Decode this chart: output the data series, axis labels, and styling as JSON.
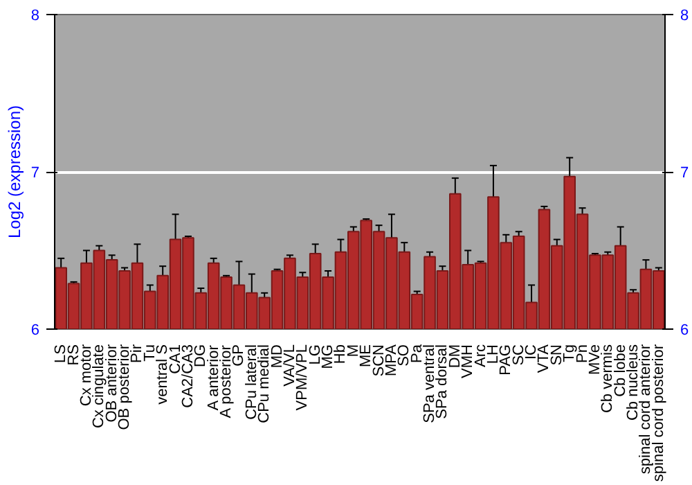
{
  "chart_data": {
    "type": "bar",
    "ylabel": "Log2 (expression)",
    "categories": [
      "LS",
      "RS",
      "Cx motor",
      "Cx cingulate",
      "OB anterior",
      "OB posterior",
      "Pir",
      "Tu",
      "ventral S",
      "CA1",
      "CA2/CA3",
      "DG",
      "A anterior",
      "A posterior",
      "GP",
      "CPu lateral",
      "CPu medial",
      "MD",
      "VA/VL",
      "VPM/VPL",
      "LG",
      "MG",
      "Hb",
      "M",
      "ME",
      "SCN",
      "MPA",
      "SO",
      "Pa",
      "SPa ventral",
      "SPa dorsal",
      "DM",
      "VMH",
      "Arc",
      "LH",
      "PAG",
      "SC",
      "IC",
      "VTA",
      "SN",
      "Tg",
      "Pn",
      "MVe",
      "Cb vermis",
      "Cb lobe",
      "Cb nucleus",
      "spinal cord anterior",
      "spinal cord posterior"
    ],
    "values": [
      6.39,
      6.29,
      6.42,
      6.5,
      6.44,
      6.37,
      6.42,
      6.24,
      6.34,
      6.57,
      6.58,
      6.23,
      6.42,
      6.33,
      6.28,
      6.23,
      6.2,
      6.37,
      6.45,
      6.33,
      6.48,
      6.33,
      6.49,
      6.62,
      6.69,
      6.62,
      6.58,
      6.49,
      6.22,
      6.46,
      6.37,
      6.86,
      6.41,
      6.42,
      6.84,
      6.55,
      6.59,
      6.17,
      6.76,
      6.53,
      6.97,
      6.73,
      6.47,
      6.47,
      6.53,
      6.23,
      6.38,
      6.37
    ],
    "errors": [
      0.06,
      0.01,
      0.08,
      0.03,
      0.03,
      0.02,
      0.12,
      0.04,
      0.06,
      0.16,
      0.01,
      0.03,
      0.03,
      0.01,
      0.15,
      0.12,
      0.03,
      0.01,
      0.02,
      0.03,
      0.06,
      0.04,
      0.08,
      0.03,
      0.01,
      0.04,
      0.15,
      0.06,
      0.02,
      0.03,
      0.03,
      0.1,
      0.09,
      0.01,
      0.2,
      0.05,
      0.03,
      0.11,
      0.02,
      0.04,
      0.12,
      0.04,
      0.01,
      0.02,
      0.12,
      0.02,
      0.06,
      0.02
    ],
    "color": "#b22a2a",
    "ylim": [
      6,
      8
    ],
    "yticks": [
      6,
      7,
      8
    ],
    "y2lim": [
      6,
      8
    ],
    "y2ticks": [
      6,
      7,
      8
    ],
    "grid": "y"
  }
}
